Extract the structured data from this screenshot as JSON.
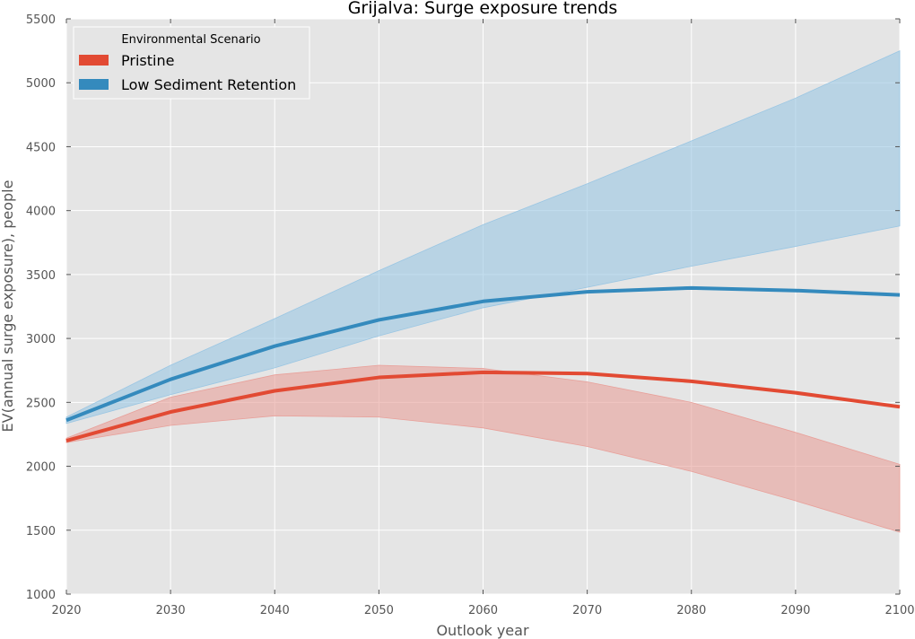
{
  "chart_data": {
    "type": "line",
    "title": "Grijalva: Surge exposure trends",
    "xlabel": "Outlook year",
    "ylabel": "EV(annual surge exposure), people",
    "xlim": [
      2020,
      2100
    ],
    "ylim": [
      1000,
      5500
    ],
    "x_ticks": [
      "2020",
      "2030",
      "2040",
      "2050",
      "2060",
      "2070",
      "2080",
      "2090",
      "2100"
    ],
    "y_ticks": [
      "1000",
      "1500",
      "2000",
      "2500",
      "3000",
      "3500",
      "4000",
      "4500",
      "5000",
      "5500"
    ],
    "grid": true,
    "background": "#e5e5e5",
    "legend": {
      "title": "Environmental Scenario",
      "placement": "top-left",
      "entries": [
        "Pristine",
        "Low Sediment Retention"
      ]
    },
    "x": [
      2020,
      2030,
      2040,
      2050,
      2060,
      2070,
      2080,
      2090,
      2100
    ],
    "series": [
      {
        "name": "Pristine",
        "color": "#e24a33",
        "band_color": "#e8a09a",
        "values": [
          2200,
          2425,
          2590,
          2695,
          2735,
          2725,
          2665,
          2575,
          2465
        ],
        "lower": [
          2185,
          2320,
          2395,
          2385,
          2300,
          2155,
          1960,
          1730,
          1485
        ],
        "upper": [
          2220,
          2540,
          2715,
          2790,
          2765,
          2660,
          2500,
          2265,
          2015
        ]
      },
      {
        "name": "Low Sediment Retention",
        "color": "#348abd",
        "band_color": "#9ac6e3",
        "values": [
          2360,
          2680,
          2940,
          3145,
          3290,
          3365,
          3395,
          3375,
          3340
        ],
        "lower": [
          2335,
          2560,
          2770,
          3020,
          3240,
          3400,
          3565,
          3720,
          3880
        ],
        "upper": [
          2385,
          2790,
          3155,
          3530,
          3890,
          4210,
          4545,
          4880,
          5250
        ]
      }
    ]
  }
}
